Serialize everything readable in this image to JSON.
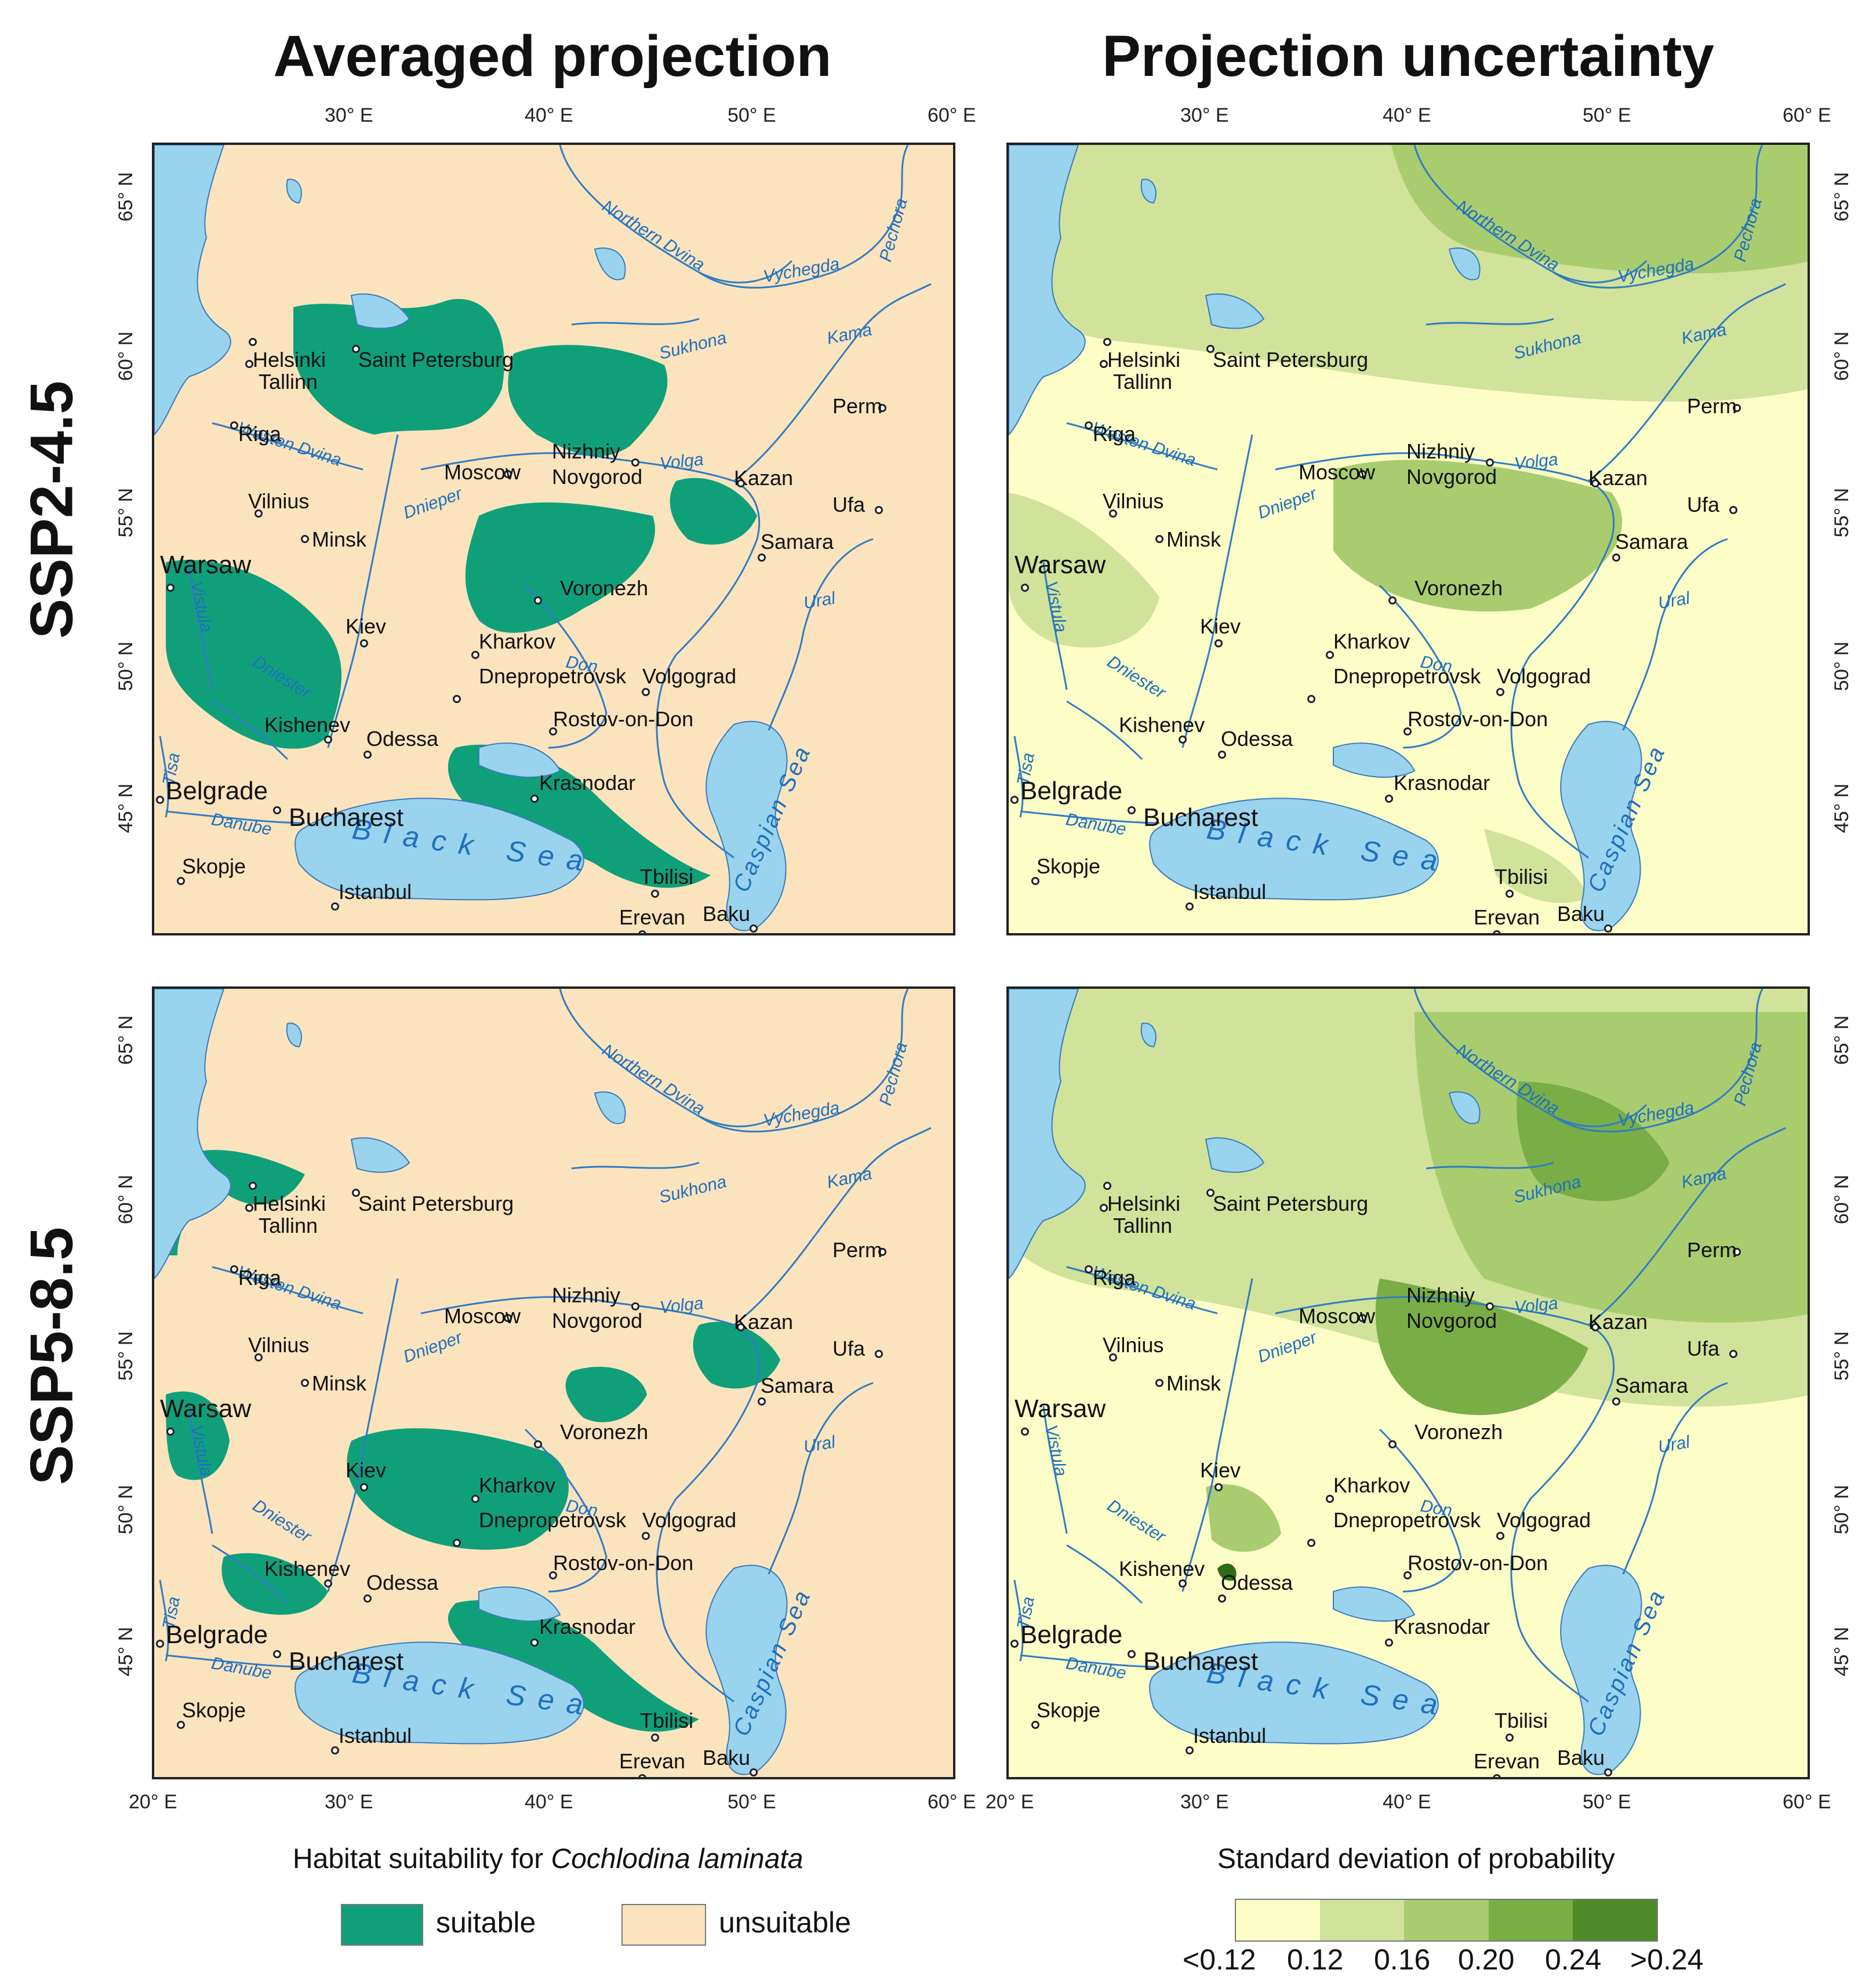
{
  "titles": {
    "left_column": "Averaged projection",
    "right_column": "Projection uncertainty",
    "top_row": "SSP2-4.5",
    "bottom_row": "SSP5-8.5"
  },
  "axes": {
    "longitude_ticks": [
      "20° E",
      "30° E",
      "40° E",
      "50° E",
      "60° E"
    ],
    "latitude_ticks": [
      "45° N",
      "50° N",
      "55° N",
      "60° N",
      "65° N"
    ]
  },
  "places": {
    "helsinki": "Helsinki",
    "tallinn": "Tallinn",
    "saint_petersburg": "Saint Petersburg",
    "riga": "Riga",
    "moscow": "Moscow",
    "nizhniy": "Nizhniy",
    "novgorod": "Novgorod",
    "kazan": "Kazan",
    "perm": "Perm",
    "ufa": "Ufa",
    "vilnius": "Vilnius",
    "minsk": "Minsk",
    "warsaw": "Warsaw",
    "samara": "Samara",
    "voronezh": "Voronezh",
    "kiev": "Kiev",
    "kharkov": "Kharkov",
    "dnepropetrovsk": "Dnepropetrovsk",
    "volgograd": "Volgograd",
    "kishenev": "Kishenev",
    "odessa": "Odessa",
    "rostov": "Rostov-on-Don",
    "belgrade": "Belgrade",
    "bucharest": "Bucharest",
    "krasnodar": "Krasnodar",
    "skopje": "Skopje",
    "istanbul": "Istanbul",
    "tbilisi": "Tbilisi",
    "erevan": "Erevan",
    "baku": "Baku"
  },
  "water_labels": {
    "northern_dvina": "Northern Dvina",
    "vychegda": "Vychegda",
    "pechora": "Pechora",
    "sukhona": "Sukhona",
    "kama": "Kama",
    "volga": "Volga",
    "western_dvina": "Westen Dvina",
    "dnieper": "Dnieper",
    "vistula": "Vistula",
    "ural": "Ural",
    "don": "Don",
    "dniester": "Dniester",
    "tisa": "Tisa",
    "danube": "Danube",
    "black_sea": "Black Sea",
    "caspian_sea": "Caspian Sea"
  },
  "legend_left": {
    "title_prefix": "Habitat suitability for ",
    "species": "Cochlodina laminata",
    "suitable_label": "suitable",
    "unsuitable_label": "unsuitable"
  },
  "legend_right": {
    "title": "Standard deviation of probability",
    "scale_labels": [
      "<0.12",
      "0.12",
      "0.16",
      "0.20",
      "0.24",
      ">0.24"
    ]
  },
  "colors": {
    "suitable": "#0fa07a",
    "unsuitable": "#fbe3bd",
    "water": "#99d3ee",
    "river": "#2f7cc4",
    "sd_classes": [
      "#fdfdc8",
      "#d1e29a",
      "#a9cc6f",
      "#79ad45",
      "#4d8b29",
      "#2f6a17"
    ]
  }
}
